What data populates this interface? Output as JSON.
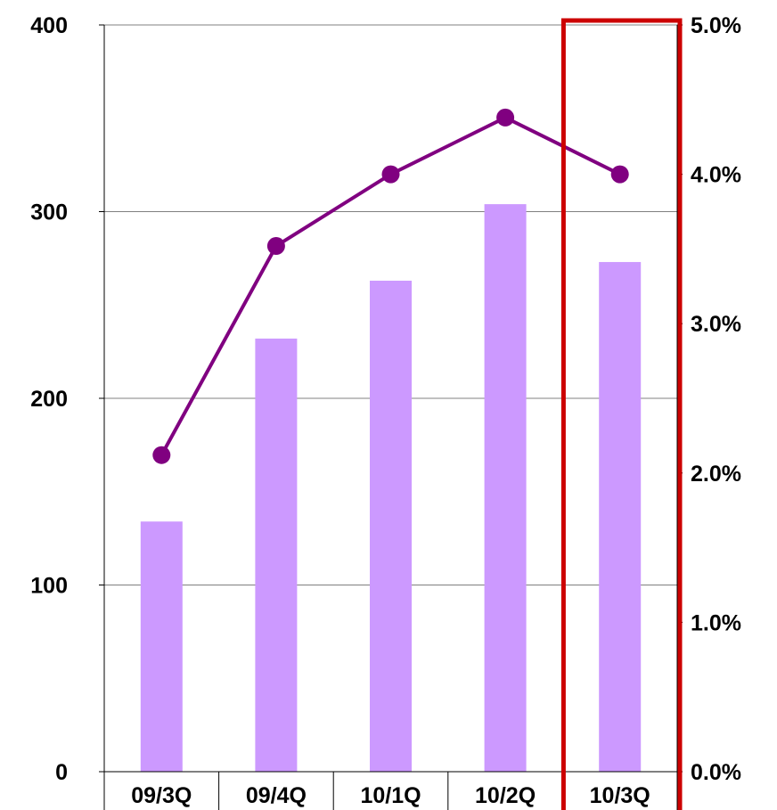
{
  "chart_data": {
    "type": "bar",
    "categories": [
      "09/3Q",
      "09/4Q",
      "10/1Q",
      "10/2Q",
      "10/3Q"
    ],
    "series": [
      {
        "type": "bar",
        "axis": "left",
        "values": [
          134,
          232,
          263,
          304,
          273
        ]
      },
      {
        "type": "line",
        "axis": "right",
        "values": [
          2.12,
          3.52,
          4.0,
          4.38,
          4.0
        ]
      }
    ],
    "left_axis": {
      "ticks": [
        "0",
        "100",
        "200",
        "300",
        "400"
      ],
      "ylim": [
        0,
        400
      ]
    },
    "right_axis": {
      "ticks": [
        "0.0%",
        "1.0%",
        "2.0%",
        "3.0%",
        "4.0%",
        "5.0%"
      ],
      "ylim": [
        0,
        5
      ]
    },
    "highlight_category": "10/3Q",
    "grid": true,
    "colors": {
      "bar": "#cc99ff",
      "line": "#800080",
      "highlight": "#cc0000",
      "grid": "#808080"
    }
  }
}
